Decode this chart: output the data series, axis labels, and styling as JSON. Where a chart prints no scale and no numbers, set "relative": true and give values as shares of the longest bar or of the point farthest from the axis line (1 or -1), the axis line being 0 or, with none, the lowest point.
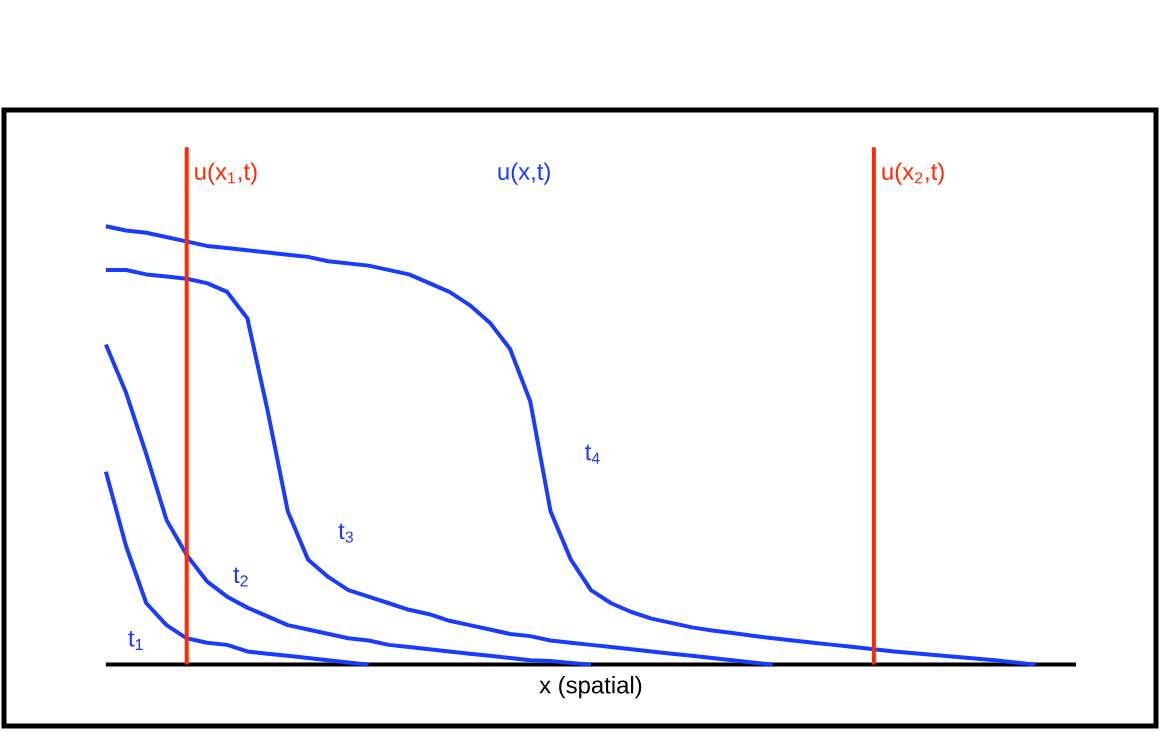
{
  "chart_data": {
    "type": "line",
    "relative": true,
    "xlabel": "x (spatial)",
    "annotations": [
      "u(x$_{1}$,t)",
      "u(x,t)",
      "u(x$_{2}$,t)"
    ],
    "categories": [
      null,
      null,
      null,
      null,
      null,
      null,
      null,
      null,
      null,
      null,
      null,
      null,
      null,
      null,
      null,
      null,
      null,
      null,
      null,
      null,
      null,
      null,
      null,
      null,
      null,
      null,
      null,
      null,
      null,
      null,
      null,
      null,
      null,
      null,
      null,
      null,
      null,
      null,
      null,
      null,
      null,
      null,
      null,
      null,
      null,
      null,
      null,
      null,
      null
    ],
    "series": [
      {
        "name": "t$_{1}$",
        "color": "#1a3cff",
        "values": [
          0.44,
          0.27,
          0.14,
          0.09,
          0.06,
          0.05,
          0.045,
          0.03,
          0.025,
          0.02,
          0.015,
          0.01,
          0.005,
          0,
          null,
          null,
          null,
          null,
          null,
          null,
          null,
          null,
          null,
          null,
          null,
          null,
          null,
          null,
          null,
          null,
          null,
          null,
          null,
          null,
          null,
          null,
          null,
          null,
          null,
          null,
          null,
          null,
          null,
          null,
          null,
          null,
          null,
          null,
          null
        ]
      },
      {
        "name": "t$_{2}$",
        "color": "#1a3cff",
        "values": [
          0.73,
          0.62,
          0.48,
          0.33,
          0.25,
          0.19,
          0.155,
          0.13,
          0.11,
          0.09,
          0.08,
          0.07,
          0.06,
          0.055,
          0.045,
          0.04,
          0.035,
          0.03,
          0.025,
          0.02,
          0.015,
          0.01,
          0.008,
          0.004,
          0,
          null,
          null,
          null,
          null,
          null,
          null,
          null,
          null,
          null,
          null,
          null,
          null,
          null,
          null,
          null,
          null,
          null,
          null,
          null,
          null,
          null,
          null,
          null,
          null
        ]
      },
      {
        "name": "t$_{3}$",
        "color": "#1a3cff",
        "values": [
          0.9,
          0.9,
          0.89,
          0.885,
          0.88,
          0.87,
          0.85,
          0.79,
          0.58,
          0.35,
          0.24,
          0.2,
          0.17,
          0.155,
          0.14,
          0.125,
          0.115,
          0.1,
          0.09,
          0.08,
          0.07,
          0.065,
          0.055,
          0.05,
          0.045,
          0.04,
          0.035,
          0.03,
          0.025,
          0.02,
          0.015,
          0.01,
          0.005,
          0,
          null,
          null,
          null,
          null,
          null,
          null,
          null,
          null,
          null,
          null,
          null,
          null,
          null,
          null,
          null
        ]
      },
      {
        "name": "t$_{4}$",
        "color": "#1a3cff",
        "values": [
          1.0,
          0.99,
          0.985,
          0.975,
          0.965,
          0.955,
          0.95,
          0.945,
          0.94,
          0.935,
          0.93,
          0.92,
          0.915,
          0.91,
          0.9,
          0.89,
          0.87,
          0.85,
          0.82,
          0.78,
          0.72,
          0.6,
          0.35,
          0.24,
          0.17,
          0.14,
          0.12,
          0.105,
          0.095,
          0.085,
          0.078,
          0.072,
          0.066,
          0.06,
          0.055,
          0.05,
          0.045,
          0.04,
          0.035,
          0.03,
          0.026,
          0.022,
          0.018,
          0.014,
          0.01,
          0.005,
          0,
          null,
          null
        ]
      }
    ]
  }
}
